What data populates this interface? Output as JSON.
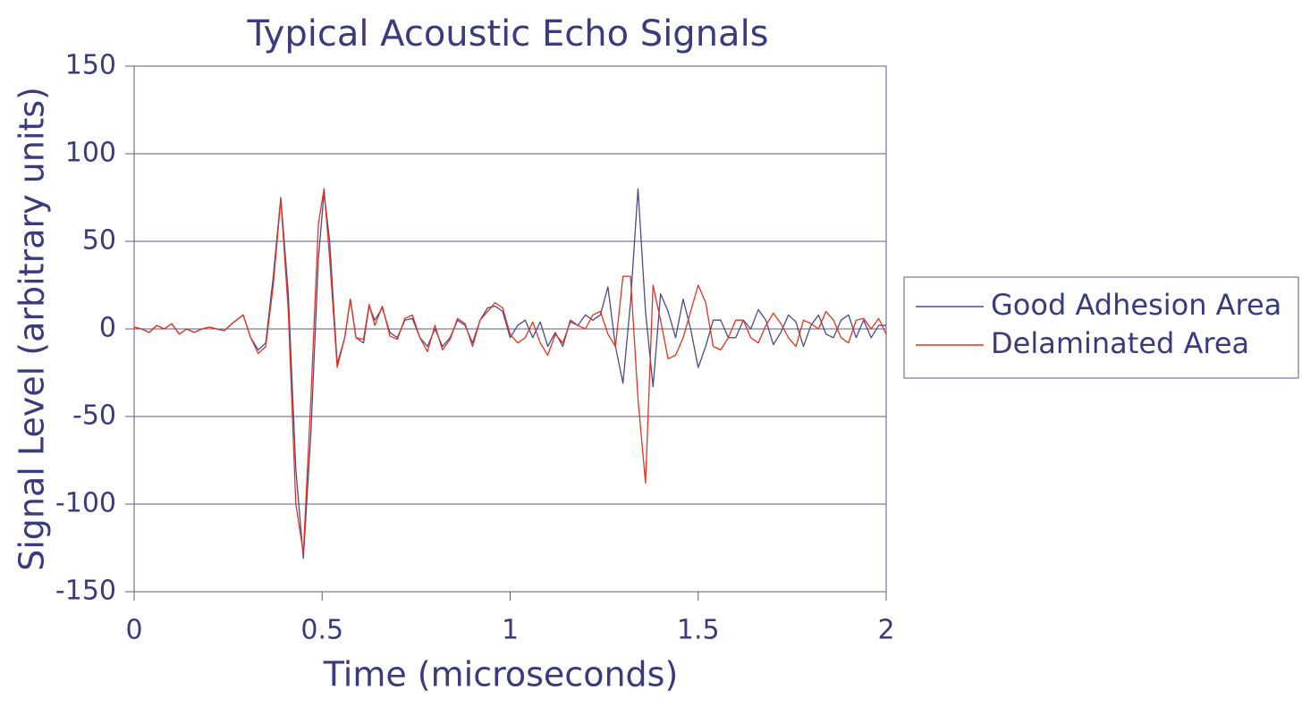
{
  "chart_data": {
    "type": "line",
    "title": "Typical Acoustic Echo Signals",
    "x_label": "Time (microseconds)",
    "y_label": "Signal Level (arbitrary units)",
    "x": [
      0,
      0.02,
      0.04,
      0.06,
      0.08,
      0.1,
      0.12,
      0.14,
      0.16,
      0.18,
      0.2,
      0.22,
      0.24,
      0.26,
      0.29,
      0.31,
      0.33,
      0.35,
      0.37,
      0.39,
      0.41,
      0.43,
      0.45,
      0.47,
      0.49,
      0.505,
      0.52,
      0.54,
      0.56,
      0.575,
      0.59,
      0.61,
      0.625,
      0.64,
      0.66,
      0.68,
      0.7,
      0.72,
      0.74,
      0.76,
      0.78,
      0.8,
      0.82,
      0.84,
      0.86,
      0.88,
      0.9,
      0.92,
      0.94,
      0.96,
      0.98,
      1.0,
      1.02,
      1.04,
      1.06,
      1.08,
      1.1,
      1.12,
      1.14,
      1.16,
      1.18,
      1.2,
      1.22,
      1.24,
      1.26,
      1.28,
      1.3,
      1.32,
      1.34,
      1.36,
      1.38,
      1.4,
      1.42,
      1.44,
      1.46,
      1.48,
      1.5,
      1.52,
      1.54,
      1.56,
      1.58,
      1.6,
      1.62,
      1.64,
      1.66,
      1.68,
      1.7,
      1.72,
      1.74,
      1.76,
      1.78,
      1.8,
      1.82,
      1.84,
      1.86,
      1.88,
      1.9,
      1.92,
      1.94,
      1.96,
      1.98,
      2.0
    ],
    "series": [
      {
        "name": "Good Adhesion Area",
        "color": "#4a4a8c",
        "values": [
          1,
          0,
          -2,
          2,
          0,
          3,
          -3,
          0,
          -2,
          0,
          1,
          0,
          -1,
          3,
          8,
          -5,
          -12,
          -8,
          30,
          75,
          20,
          -80,
          -131,
          -60,
          40,
          78,
          50,
          -20,
          -5,
          17,
          -5,
          -8,
          13,
          5,
          12,
          -2,
          -5,
          5,
          6,
          -5,
          -10,
          0,
          -10,
          -5,
          5,
          2,
          -8,
          5,
          12,
          13,
          10,
          -5,
          2,
          5,
          -5,
          4,
          -10,
          -2,
          -10,
          5,
          2,
          8,
          5,
          8,
          24,
          -10,
          -31,
          15,
          80,
          10,
          -33,
          20,
          10,
          -5,
          17,
          0,
          -22,
          -10,
          5,
          5,
          -5,
          -5,
          5,
          0,
          11,
          5,
          -9,
          -2,
          8,
          4,
          -10,
          2,
          8,
          -3,
          -5,
          5,
          8,
          -5,
          5,
          -5,
          2,
          2
        ]
      },
      {
        "name": "Delaminated Area",
        "color": "#e8321e",
        "values": [
          1,
          0,
          -2,
          2,
          0,
          3,
          -3,
          0,
          -2,
          0,
          1,
          0,
          -1,
          3,
          8,
          -5,
          -14,
          -10,
          25,
          74,
          10,
          -100,
          -128,
          -40,
          60,
          80,
          40,
          -22,
          -5,
          17,
          -5,
          -6,
          14,
          2,
          13,
          -4,
          -6,
          6,
          8,
          -5,
          -13,
          2,
          -12,
          -6,
          6,
          3,
          -10,
          5,
          10,
          15,
          12,
          -3,
          -8,
          -5,
          4,
          -8,
          -15,
          -3,
          -8,
          4,
          2,
          0,
          8,
          10,
          -3,
          -10,
          30,
          30,
          -40,
          -88,
          25,
          5,
          -17,
          -15,
          -5,
          10,
          25,
          15,
          -10,
          -12,
          -5,
          5,
          5,
          -5,
          -8,
          2,
          9,
          3,
          -5,
          -10,
          5,
          3,
          0,
          10,
          5,
          -5,
          -8,
          5,
          6,
          0,
          6,
          -3
        ]
      }
    ],
    "xlim": [
      0,
      2
    ],
    "xticks": [
      0,
      0.5,
      1,
      1.5,
      2
    ],
    "ylim": [
      -150,
      150
    ],
    "yticks": [
      -150,
      -100,
      -50,
      0,
      50,
      100,
      150
    ],
    "grid": true,
    "legend": "right"
  }
}
